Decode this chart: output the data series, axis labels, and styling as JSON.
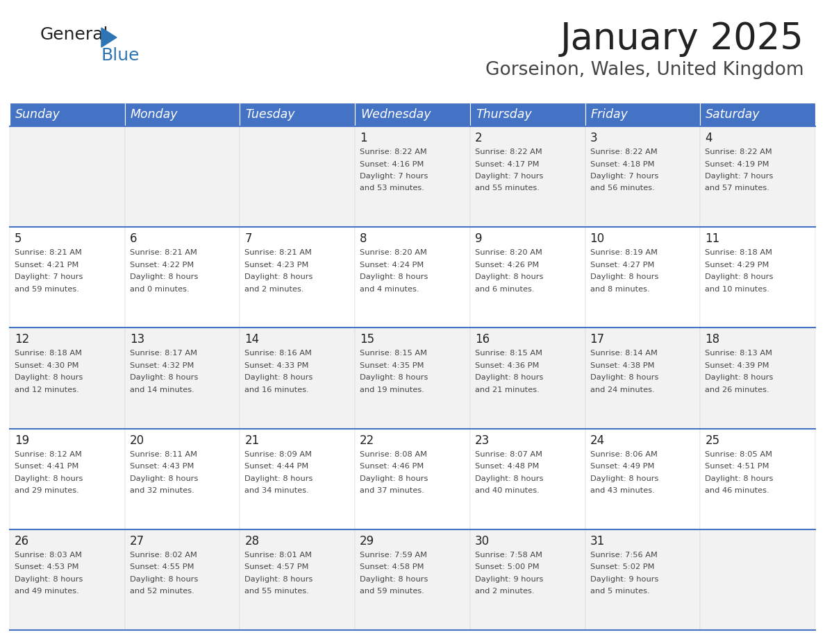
{
  "title": "January 2025",
  "subtitle": "Gorseinon, Wales, United Kingdom",
  "header_bg_color": "#4472C4",
  "header_text_color": "#FFFFFF",
  "row_bg_even": "#F2F2F2",
  "row_bg_odd": "#FFFFFF",
  "border_color": "#4472C4",
  "day_headers": [
    "Sunday",
    "Monday",
    "Tuesday",
    "Wednesday",
    "Thursday",
    "Friday",
    "Saturday"
  ],
  "title_color": "#222222",
  "subtitle_color": "#444444",
  "cell_text_color": "#444444",
  "day_num_color": "#222222",
  "logo_blue_color": "#2E75B6",
  "calendar_data": [
    [
      {
        "day": "",
        "sunrise": "",
        "sunset": "",
        "daylight": ""
      },
      {
        "day": "",
        "sunrise": "",
        "sunset": "",
        "daylight": ""
      },
      {
        "day": "",
        "sunrise": "",
        "sunset": "",
        "daylight": ""
      },
      {
        "day": "1",
        "sunrise": "8:22 AM",
        "sunset": "4:16 PM",
        "daylight": "7 hours\nand 53 minutes."
      },
      {
        "day": "2",
        "sunrise": "8:22 AM",
        "sunset": "4:17 PM",
        "daylight": "7 hours\nand 55 minutes."
      },
      {
        "day": "3",
        "sunrise": "8:22 AM",
        "sunset": "4:18 PM",
        "daylight": "7 hours\nand 56 minutes."
      },
      {
        "day": "4",
        "sunrise": "8:22 AM",
        "sunset": "4:19 PM",
        "daylight": "7 hours\nand 57 minutes."
      }
    ],
    [
      {
        "day": "5",
        "sunrise": "8:21 AM",
        "sunset": "4:21 PM",
        "daylight": "7 hours\nand 59 minutes."
      },
      {
        "day": "6",
        "sunrise": "8:21 AM",
        "sunset": "4:22 PM",
        "daylight": "8 hours\nand 0 minutes."
      },
      {
        "day": "7",
        "sunrise": "8:21 AM",
        "sunset": "4:23 PM",
        "daylight": "8 hours\nand 2 minutes."
      },
      {
        "day": "8",
        "sunrise": "8:20 AM",
        "sunset": "4:24 PM",
        "daylight": "8 hours\nand 4 minutes."
      },
      {
        "day": "9",
        "sunrise": "8:20 AM",
        "sunset": "4:26 PM",
        "daylight": "8 hours\nand 6 minutes."
      },
      {
        "day": "10",
        "sunrise": "8:19 AM",
        "sunset": "4:27 PM",
        "daylight": "8 hours\nand 8 minutes."
      },
      {
        "day": "11",
        "sunrise": "8:18 AM",
        "sunset": "4:29 PM",
        "daylight": "8 hours\nand 10 minutes."
      }
    ],
    [
      {
        "day": "12",
        "sunrise": "8:18 AM",
        "sunset": "4:30 PM",
        "daylight": "8 hours\nand 12 minutes."
      },
      {
        "day": "13",
        "sunrise": "8:17 AM",
        "sunset": "4:32 PM",
        "daylight": "8 hours\nand 14 minutes."
      },
      {
        "day": "14",
        "sunrise": "8:16 AM",
        "sunset": "4:33 PM",
        "daylight": "8 hours\nand 16 minutes."
      },
      {
        "day": "15",
        "sunrise": "8:15 AM",
        "sunset": "4:35 PM",
        "daylight": "8 hours\nand 19 minutes."
      },
      {
        "day": "16",
        "sunrise": "8:15 AM",
        "sunset": "4:36 PM",
        "daylight": "8 hours\nand 21 minutes."
      },
      {
        "day": "17",
        "sunrise": "8:14 AM",
        "sunset": "4:38 PM",
        "daylight": "8 hours\nand 24 minutes."
      },
      {
        "day": "18",
        "sunrise": "8:13 AM",
        "sunset": "4:39 PM",
        "daylight": "8 hours\nand 26 minutes."
      }
    ],
    [
      {
        "day": "19",
        "sunrise": "8:12 AM",
        "sunset": "4:41 PM",
        "daylight": "8 hours\nand 29 minutes."
      },
      {
        "day": "20",
        "sunrise": "8:11 AM",
        "sunset": "4:43 PM",
        "daylight": "8 hours\nand 32 minutes."
      },
      {
        "day": "21",
        "sunrise": "8:09 AM",
        "sunset": "4:44 PM",
        "daylight": "8 hours\nand 34 minutes."
      },
      {
        "day": "22",
        "sunrise": "8:08 AM",
        "sunset": "4:46 PM",
        "daylight": "8 hours\nand 37 minutes."
      },
      {
        "day": "23",
        "sunrise": "8:07 AM",
        "sunset": "4:48 PM",
        "daylight": "8 hours\nand 40 minutes."
      },
      {
        "day": "24",
        "sunrise": "8:06 AM",
        "sunset": "4:49 PM",
        "daylight": "8 hours\nand 43 minutes."
      },
      {
        "day": "25",
        "sunrise": "8:05 AM",
        "sunset": "4:51 PM",
        "daylight": "8 hours\nand 46 minutes."
      }
    ],
    [
      {
        "day": "26",
        "sunrise": "8:03 AM",
        "sunset": "4:53 PM",
        "daylight": "8 hours\nand 49 minutes."
      },
      {
        "day": "27",
        "sunrise": "8:02 AM",
        "sunset": "4:55 PM",
        "daylight": "8 hours\nand 52 minutes."
      },
      {
        "day": "28",
        "sunrise": "8:01 AM",
        "sunset": "4:57 PM",
        "daylight": "8 hours\nand 55 minutes."
      },
      {
        "day": "29",
        "sunrise": "7:59 AM",
        "sunset": "4:58 PM",
        "daylight": "8 hours\nand 59 minutes."
      },
      {
        "day": "30",
        "sunrise": "7:58 AM",
        "sunset": "5:00 PM",
        "daylight": "9 hours\nand 2 minutes."
      },
      {
        "day": "31",
        "sunrise": "7:56 AM",
        "sunset": "5:02 PM",
        "daylight": "9 hours\nand 5 minutes."
      },
      {
        "day": "",
        "sunrise": "",
        "sunset": "",
        "daylight": ""
      }
    ]
  ]
}
